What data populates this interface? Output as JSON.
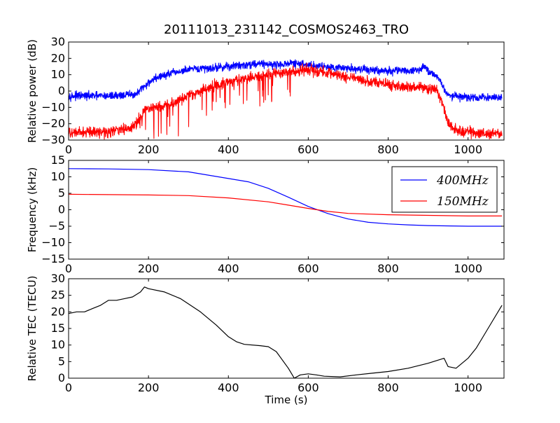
{
  "figure_title": "20111013_231142_COSMOS2463_TRO",
  "xlabel": "Time (s)",
  "chart_data": [
    {
      "type": "line",
      "ylabel": "Relative power (dB)",
      "xlim": [
        0,
        1090
      ],
      "ylim": [
        -30,
        30
      ],
      "xticks": [
        0,
        200,
        400,
        600,
        800,
        1000
      ],
      "yticks": [
        -30,
        -20,
        -10,
        0,
        10,
        20,
        30
      ],
      "grid": false,
      "series": [
        {
          "color": "#0000ff",
          "noise": 2.4,
          "points": [
            [
              0,
              -3
            ],
            [
              100,
              -3
            ],
            [
              170,
              -2
            ],
            [
              190,
              3
            ],
            [
              210,
              7
            ],
            [
              230,
              9
            ],
            [
              260,
              11
            ],
            [
              300,
              13
            ],
            [
              350,
              14
            ],
            [
              400,
              15
            ],
            [
              440,
              16
            ],
            [
              480,
              17
            ],
            [
              520,
              16
            ],
            [
              560,
              17
            ],
            [
              600,
              16
            ],
            [
              650,
              15
            ],
            [
              700,
              14
            ],
            [
              750,
              13
            ],
            [
              800,
              12
            ],
            [
              830,
              13
            ],
            [
              860,
              12
            ],
            [
              880,
              13
            ],
            [
              890,
              16
            ],
            [
              900,
              12
            ],
            [
              920,
              10
            ],
            [
              935,
              4
            ],
            [
              945,
              -1
            ],
            [
              960,
              -3
            ],
            [
              1000,
              -4
            ],
            [
              1050,
              -4
            ],
            [
              1085,
              -4
            ]
          ]
        },
        {
          "color": "#ff0000",
          "noise": 3.2,
          "spiky": true,
          "points": [
            [
              0,
              -26
            ],
            [
              50,
              -25
            ],
            [
              100,
              -25
            ],
            [
              150,
              -23
            ],
            [
              170,
              -20
            ],
            [
              190,
              -12
            ],
            [
              220,
              -10
            ],
            [
              260,
              -8
            ],
            [
              300,
              -3
            ],
            [
              350,
              2
            ],
            [
              400,
              6
            ],
            [
              450,
              8
            ],
            [
              500,
              10
            ],
            [
              560,
              12
            ],
            [
              600,
              13
            ],
            [
              650,
              11
            ],
            [
              700,
              9
            ],
            [
              750,
              6
            ],
            [
              800,
              4
            ],
            [
              850,
              2
            ],
            [
              900,
              2
            ],
            [
              920,
              0
            ],
            [
              935,
              -7
            ],
            [
              950,
              -20
            ],
            [
              980,
              -25
            ],
            [
              1000,
              -25
            ],
            [
              1050,
              -26
            ],
            [
              1085,
              -26
            ]
          ]
        }
      ]
    },
    {
      "type": "line",
      "ylabel": "Frequency (kHz)",
      "xlim": [
        0,
        1090
      ],
      "ylim": [
        -15,
        15
      ],
      "xticks": [
        0,
        200,
        400,
        600,
        800,
        1000
      ],
      "yticks": [
        -15,
        -10,
        -5,
        0,
        5,
        10,
        15
      ],
      "grid": false,
      "legend_position": "top-right",
      "series": [
        {
          "name": "400MHz",
          "color": "#0000ff",
          "points": [
            [
              0,
              12.5
            ],
            [
              100,
              12.4
            ],
            [
              200,
              12.2
            ],
            [
              300,
              11.5
            ],
            [
              400,
              9.5
            ],
            [
              450,
              8.5
            ],
            [
              500,
              6.5
            ],
            [
              550,
              3.8
            ],
            [
              600,
              1.0
            ],
            [
              650,
              -1.2
            ],
            [
              700,
              -2.8
            ],
            [
              750,
              -3.8
            ],
            [
              800,
              -4.3
            ],
            [
              850,
              -4.6
            ],
            [
              900,
              -4.8
            ],
            [
              1000,
              -5
            ],
            [
              1085,
              -5
            ]
          ]
        },
        {
          "name": "150MHz",
          "color": "#ff0000",
          "points": [
            [
              0,
              4.7
            ],
            [
              100,
              4.6
            ],
            [
              200,
              4.5
            ],
            [
              300,
              4.3
            ],
            [
              400,
              3.6
            ],
            [
              500,
              2.4
            ],
            [
              550,
              1.4
            ],
            [
              600,
              0.4
            ],
            [
              650,
              -0.5
            ],
            [
              700,
              -1.1
            ],
            [
              800,
              -1.5
            ],
            [
              900,
              -1.7
            ],
            [
              1000,
              -1.9
            ],
            [
              1085,
              -1.9
            ]
          ]
        }
      ]
    },
    {
      "type": "line",
      "ylabel": "Relative TEC (TECU)",
      "xlim": [
        0,
        1090
      ],
      "ylim": [
        0,
        30
      ],
      "xticks": [
        0,
        200,
        400,
        600,
        800,
        1000
      ],
      "yticks": [
        0,
        5,
        10,
        15,
        20,
        25,
        30
      ],
      "grid": false,
      "series": [
        {
          "color": "#000000",
          "points": [
            [
              0,
              19.5
            ],
            [
              20,
              20
            ],
            [
              40,
              20
            ],
            [
              60,
              21
            ],
            [
              80,
              22
            ],
            [
              100,
              23.5
            ],
            [
              120,
              23.5
            ],
            [
              140,
              24
            ],
            [
              160,
              24.5
            ],
            [
              180,
              26
            ],
            [
              190,
              27.5
            ],
            [
              200,
              27
            ],
            [
              240,
              26
            ],
            [
              280,
              24
            ],
            [
              330,
              20
            ],
            [
              370,
              16
            ],
            [
              400,
              12.5
            ],
            [
              420,
              11
            ],
            [
              440,
              10.2
            ],
            [
              480,
              9.8
            ],
            [
              500,
              9.5
            ],
            [
              520,
              8
            ],
            [
              550,
              3
            ],
            [
              565,
              0
            ],
            [
              580,
              1
            ],
            [
              600,
              1.3
            ],
            [
              620,
              1
            ],
            [
              640,
              0.6
            ],
            [
              680,
              0.4
            ],
            [
              720,
              1
            ],
            [
              760,
              1.5
            ],
            [
              800,
              2
            ],
            [
              850,
              3
            ],
            [
              900,
              4.5
            ],
            [
              940,
              6
            ],
            [
              950,
              3.5
            ],
            [
              970,
              3
            ],
            [
              1000,
              6
            ],
            [
              1020,
              9
            ],
            [
              1040,
              13
            ],
            [
              1060,
              17
            ],
            [
              1080,
              21
            ],
            [
              1085,
              22
            ]
          ]
        }
      ]
    }
  ]
}
